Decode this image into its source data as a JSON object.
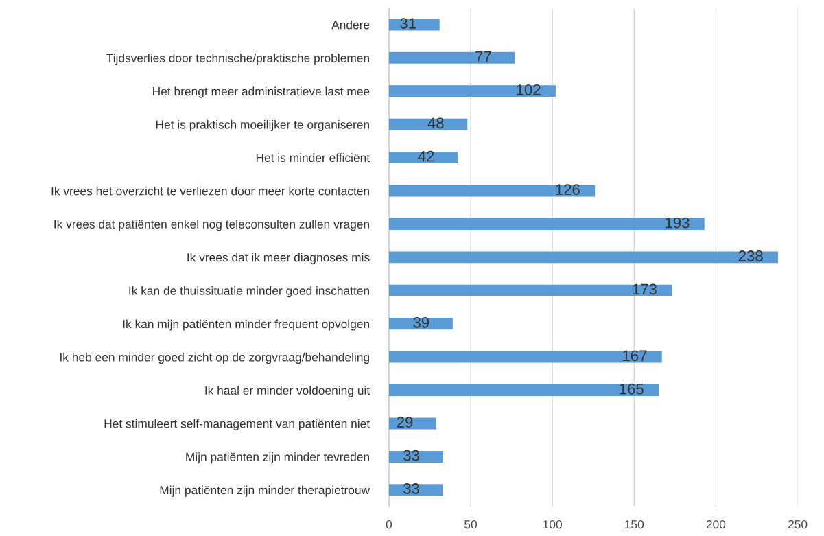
{
  "chart_data": {
    "type": "bar",
    "orientation": "horizontal",
    "categories": [
      "Andere",
      "Tijdsverlies door technische/praktische problemen",
      "Het brengt meer administratieve last mee",
      "Het is praktisch moeilijker te organiseren",
      "Het is minder efficiënt",
      "Ik vrees het overzicht te verliezen door meer korte contacten",
      "Ik vrees dat patiënten enkel nog teleconsulten zullen vragen",
      "Ik vrees dat ik meer diagnoses mis",
      "Ik kan de thuissituatie minder goed inschatten",
      "Ik kan mijn patiënten minder frequent opvolgen",
      "Ik heb een minder goed zicht op de zorgvraag/behandeling",
      "Ik haal er minder voldoening uit",
      "Het stimuleert self-management van patiënten niet",
      "Mijn patiënten zijn minder tevreden",
      "Mijn patiënten zijn minder therapietrouw"
    ],
    "values": [
      31,
      77,
      102,
      48,
      42,
      126,
      193,
      238,
      173,
      39,
      167,
      165,
      29,
      33,
      33
    ],
    "color": "#5b9bd5",
    "xlim": [
      0,
      250
    ],
    "xticks": [
      0,
      50,
      100,
      150,
      200,
      250
    ],
    "grid": "x",
    "data_labels": true
  }
}
